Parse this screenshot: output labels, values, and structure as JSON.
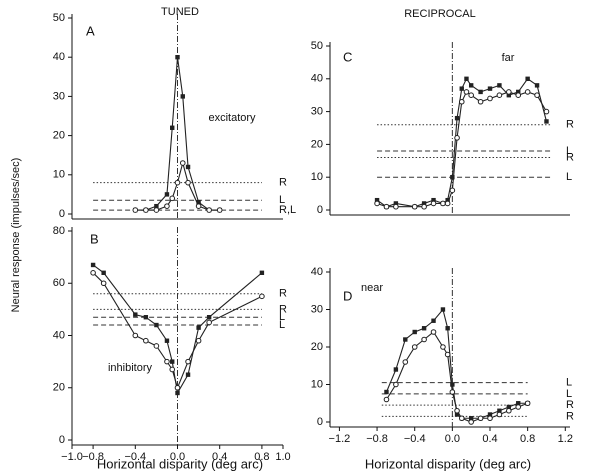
{
  "y_label": "Neural response (impulses/sec)",
  "chart_data": [
    {
      "type": "line",
      "panel": "A",
      "title": "TUNED",
      "annotation": "excitatory",
      "xlim": [
        -1.0,
        1.0
      ],
      "ylim": [
        0,
        50
      ],
      "yticks": [
        0,
        10,
        20,
        30,
        40,
        50
      ],
      "series": [
        {
          "marker": "square-filled",
          "color": "#222",
          "x": [
            -0.4,
            -0.3,
            -0.2,
            -0.1,
            -0.05,
            0,
            0.05,
            0.1,
            0.2,
            0.3,
            0.4
          ],
          "values": [
            1,
            1,
            2,
            5,
            22,
            40,
            30,
            12,
            3,
            1,
            1
          ]
        },
        {
          "marker": "circle-open",
          "color": "#222",
          "x": [
            -0.4,
            -0.3,
            -0.2,
            -0.1,
            -0.05,
            0,
            0.05,
            0.1,
            0.2,
            0.3,
            0.4
          ],
          "values": [
            1,
            1,
            1,
            2,
            4,
            8,
            13,
            8,
            2,
            1,
            1
          ]
        }
      ],
      "ref_xlim": [
        -0.8,
        0.8
      ],
      "reference_lines": [
        {
          "name": "R",
          "y": 8,
          "style": "dotted"
        },
        {
          "name": "L",
          "y": 3.5,
          "style": "dashed"
        },
        {
          "name": "R,L",
          "y": 1,
          "style": "dashed"
        }
      ]
    },
    {
      "type": "line",
      "panel": "B",
      "annotation": "inhibitory",
      "x_label": "Horizontal disparity (deg arc)",
      "xlim": [
        -1.0,
        1.0
      ],
      "ylim": [
        0,
        80
      ],
      "yticks": [
        0,
        20,
        40,
        60,
        80
      ],
      "xticks": [
        {
          "value": -1.0,
          "label": "−1.0"
        },
        {
          "value": -0.8,
          "label": "−0.8"
        },
        {
          "value": -0.4,
          "label": "−0.4"
        },
        {
          "value": 0,
          "label": "0.0"
        },
        0.4,
        0.8,
        {
          "value": 1.0,
          "label": "1.0"
        }
      ],
      "series": [
        {
          "marker": "square-filled",
          "color": "#222",
          "x": [
            -0.8,
            -0.7,
            -0.4,
            -0.3,
            -0.2,
            -0.1,
            -0.05,
            0,
            0.1,
            0.2,
            0.3,
            0.8
          ],
          "values": [
            67,
            64,
            48,
            47,
            44,
            38,
            30,
            18,
            25,
            43,
            47,
            64
          ]
        },
        {
          "marker": "circle-open",
          "color": "#222",
          "x": [
            -0.8,
            -0.7,
            -0.4,
            -0.3,
            -0.2,
            -0.1,
            -0.05,
            0,
            0.1,
            0.2,
            0.3,
            0.8
          ],
          "values": [
            64,
            60,
            40,
            38,
            36,
            30,
            27,
            20,
            30,
            38,
            45,
            55
          ]
        }
      ],
      "ref_xlim": [
        -0.8,
        0.8
      ],
      "reference_lines": [
        {
          "name": "R",
          "y": 56,
          "style": "dotted"
        },
        {
          "name": "R",
          "y": 50,
          "style": "dotted"
        },
        {
          "name": "L",
          "y": 47,
          "style": "dashed"
        },
        {
          "name": "L",
          "y": 44,
          "style": "dashed"
        }
      ]
    },
    {
      "type": "line",
      "panel": "C",
      "title": "RECIPROCAL",
      "annotation": "far",
      "xlim": [
        -1.3,
        1.25
      ],
      "ylim": [
        0,
        50
      ],
      "yticks": [
        0,
        10,
        20,
        30,
        40,
        50
      ],
      "series": [
        {
          "marker": "square-filled",
          "color": "#222",
          "x": [
            -0.8,
            -0.7,
            -0.6,
            -0.4,
            -0.3,
            -0.2,
            -0.1,
            -0.05,
            0,
            0.05,
            0.1,
            0.15,
            0.2,
            0.3,
            0.4,
            0.5,
            0.6,
            0.7,
            0.8,
            0.9,
            1.0
          ],
          "values": [
            3,
            1,
            2,
            1,
            2,
            3,
            2,
            3,
            10,
            28,
            37,
            40,
            38,
            36,
            37,
            38,
            35,
            36,
            40,
            38,
            27
          ]
        },
        {
          "marker": "circle-open",
          "color": "#222",
          "x": [
            -0.8,
            -0.7,
            -0.6,
            -0.4,
            -0.3,
            -0.2,
            -0.1,
            -0.05,
            0,
            0.05,
            0.1,
            0.15,
            0.2,
            0.3,
            0.4,
            0.5,
            0.6,
            0.7,
            0.8,
            0.9,
            1.0
          ],
          "values": [
            2,
            1,
            1,
            1,
            1,
            2,
            2,
            2,
            6,
            22,
            33,
            36,
            35,
            33,
            34,
            35,
            36,
            35,
            36,
            35,
            30
          ]
        }
      ],
      "ref_xlim": [
        -0.8,
        1.05
      ],
      "reference_lines": [
        {
          "name": "R",
          "y": 26,
          "style": "dotted"
        },
        {
          "name": "L",
          "y": 18,
          "style": "dashed"
        },
        {
          "name": "R",
          "y": 16,
          "style": "dotted"
        },
        {
          "name": "L",
          "y": 10,
          "style": "dashed"
        }
      ]
    },
    {
      "type": "line",
      "panel": "D",
      "annotation": "near",
      "x_label": "Horizontal disparity (deg arc)",
      "xlim": [
        -1.3,
        1.25
      ],
      "ylim": [
        0,
        40
      ],
      "yticks": [
        0,
        10,
        20,
        30,
        40
      ],
      "xticks": [
        {
          "value": -1.2,
          "label": "−1.2"
        },
        {
          "value": -0.8,
          "label": "−0.8"
        },
        {
          "value": -0.4,
          "label": "−0.4"
        },
        {
          "value": 0,
          "label": "0.0"
        },
        0.4,
        0.8,
        1.2
      ],
      "series": [
        {
          "marker": "square-filled",
          "color": "#222",
          "x": [
            -0.7,
            -0.6,
            -0.5,
            -0.4,
            -0.3,
            -0.2,
            -0.1,
            -0.05,
            0,
            0.05,
            0.1,
            0.2,
            0.3,
            0.4,
            0.5,
            0.6,
            0.7,
            0.8
          ],
          "values": [
            8,
            14,
            22,
            24,
            25,
            27,
            30,
            25,
            10,
            2,
            1,
            1,
            1,
            2,
            3,
            4,
            5,
            5
          ]
        },
        {
          "marker": "circle-open",
          "color": "#222",
          "x": [
            -0.7,
            -0.6,
            -0.5,
            -0.4,
            -0.3,
            -0.2,
            -0.1,
            -0.05,
            0,
            0.05,
            0.1,
            0.2,
            0.3,
            0.4,
            0.5,
            0.6,
            0.7,
            0.8
          ],
          "values": [
            6,
            10,
            16,
            20,
            22,
            24,
            20,
            18,
            8,
            3,
            1,
            0,
            1,
            1,
            2,
            3,
            4,
            5
          ]
        }
      ],
      "ref_xlim": [
        -0.75,
        0.8
      ],
      "reference_lines": [
        {
          "name": "L",
          "y": 10.5,
          "style": "dashed"
        },
        {
          "name": "L",
          "y": 7.5,
          "style": "dashed"
        },
        {
          "name": "R",
          "y": 4.5,
          "style": "dotted"
        },
        {
          "name": "R",
          "y": 1.5,
          "style": "dotted"
        }
      ]
    }
  ]
}
